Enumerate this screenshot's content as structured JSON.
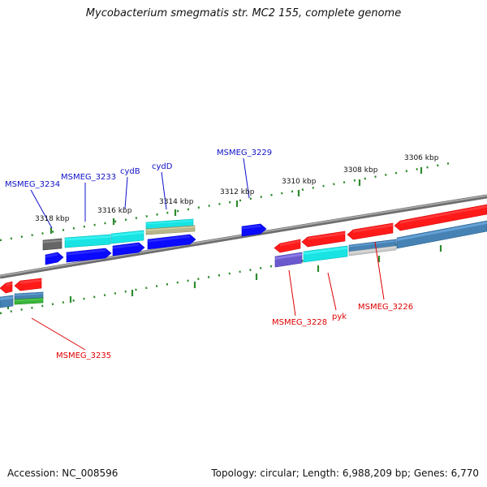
{
  "title": "Mycobacterium smegmatis str. MC2 155, complete genome",
  "footer": {
    "accession": "Accession: NC_008596",
    "summary": "Topology: circular; Length: 6,988,209 bp; Genes: 6,770"
  },
  "colors": {
    "backbone": "#8a8a8a",
    "tick": "#2e8b2e",
    "label_forward": "#1010c8",
    "label_reverse": "#e00000",
    "gene_red": "#ff1a1a",
    "gene_blue": "#0a0aff",
    "gene_cyan": "#19e3e3",
    "gene_steel": "#4682b4",
    "gene_gray": "#666666",
    "gene_khaki": "#b8b68a",
    "gene_slate": "#6a5acd",
    "gene_green": "#3cb43c",
    "gene_lightgray": "#c8c8c8"
  },
  "scale_labels": {
    "k3306": "3306 kbp",
    "k3308": "3308 kbp",
    "k3310": "3310 kbp",
    "k3312": "3312 kbp",
    "k3314": "3314 kbp",
    "k3316": "3316 kbp",
    "k3318": "3318 kbp"
  },
  "gene_labels": {
    "msmeg_3234": "MSMEG_3234",
    "msmeg_3233": "MSMEG_3233",
    "cydb": "cydB",
    "cydd": "cydD",
    "msmeg_3229": "MSMEG_3229",
    "msmeg_3235": "MSMEG_3235",
    "msmeg_3228": "MSMEG_3228",
    "pyk": "pyk",
    "msmeg_3226": "MSMEG_3226"
  }
}
